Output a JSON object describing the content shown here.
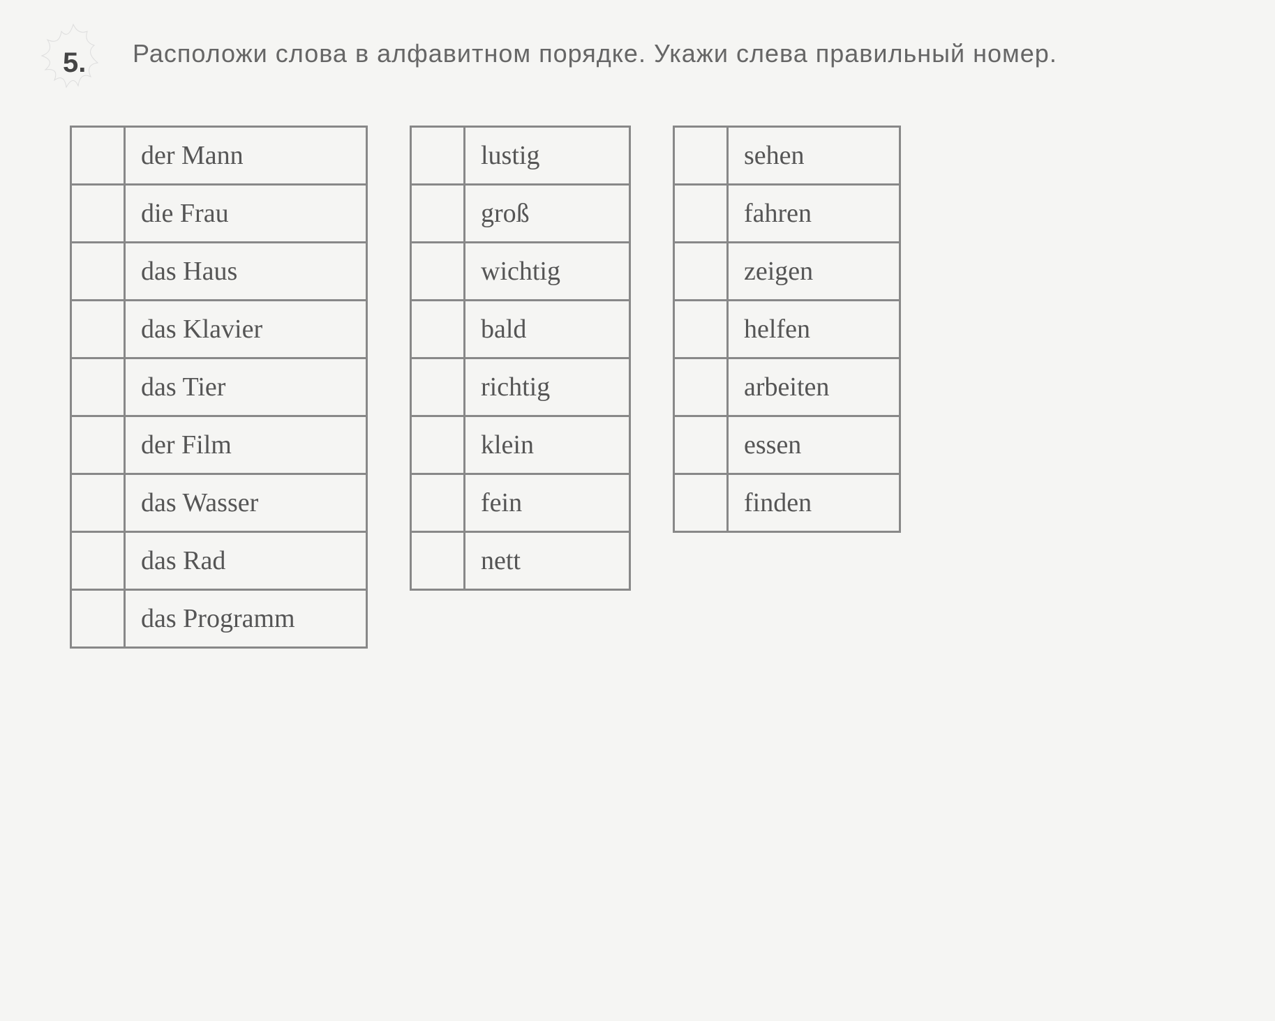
{
  "exercise_number": "5.",
  "instruction": "Расположи слова в алфавитном порядке. Укажи слева правильный номер.",
  "tables": {
    "col1": [
      "der Mann",
      "die Frau",
      "das Haus",
      "das Klavier",
      "das Tier",
      "der Film",
      "das Wasser",
      "das Rad",
      "das Programm"
    ],
    "col2": [
      "lustig",
      "groß",
      "wichtig",
      "bald",
      "richtig",
      "klein",
      "fein",
      "nett"
    ],
    "col3": [
      "sehen",
      "fahren",
      "zeigen",
      "helfen",
      "arbeiten",
      "essen",
      "finden"
    ]
  },
  "style": {
    "background_color": "#f5f5f3",
    "text_color": "#555",
    "border_color": "#888",
    "border_width": 3,
    "cell_padding": "18px 22px",
    "word_fontsize": 38,
    "instruction_fontsize": 36,
    "number_fontsize": 40,
    "numcol_width": 30
  }
}
